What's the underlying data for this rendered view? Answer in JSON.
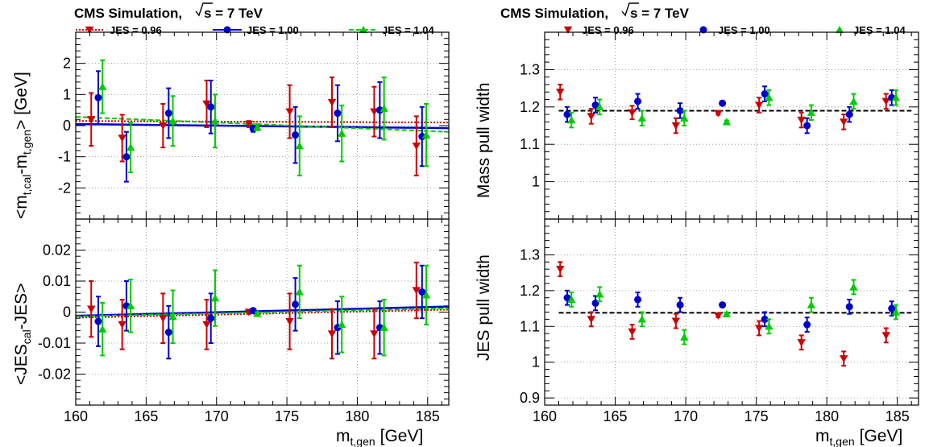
{
  "figure": {
    "title": "CMS Simulation,",
    "energy_label": "s = 7 TeV",
    "xlabel_main": "m",
    "xlabel_sub": "t,gen",
    "xlabel_unit": "[GeV]"
  },
  "colors": {
    "jes096": "#cc0000",
    "jes100": "#0000cc",
    "jes104": "#00cc00",
    "reference_line": "#000000"
  },
  "chart_data": [
    {
      "id": "top-left",
      "type": "scatter",
      "ylabel": "<m_t,cal - m_t,gen> [GeV]",
      "ylabel_parts": {
        "a": "<m",
        "a_sub": "t,cal",
        "b": "-m",
        "b_sub": "t,gen",
        "c": "> [GeV]"
      },
      "xlim": [
        160,
        186.5
      ],
      "ylim": [
        -3,
        3
      ],
      "xticks": [
        160,
        165,
        170,
        175,
        180,
        185
      ],
      "yticks": [
        -2,
        -1,
        0,
        1,
        2
      ],
      "xtick_labels": [],
      "grid": true,
      "legend": {
        "placement": "top",
        "entries": [
          {
            "series": "jes096",
            "label": "JES = 0.96",
            "line": "dotted",
            "marker": "triangle-down"
          },
          {
            "series": "jes100",
            "label": "JES = 1.00",
            "line": "solid",
            "marker": "circle"
          },
          {
            "series": "jes104",
            "label": "JES = 1.04",
            "line": "dashed",
            "marker": "triangle-up"
          }
        ]
      },
      "series": [
        {
          "key": "jes096",
          "name": "JES = 0.96",
          "marker": "triangle-down",
          "x": [
            161.1,
            163.3,
            166.2,
            169.3,
            172.3,
            175.2,
            178.2,
            181.2,
            184.2
          ],
          "y": [
            0.2,
            -0.4,
            0.0,
            0.7,
            0.05,
            0.45,
            0.75,
            0.45,
            -0.65
          ],
          "err": [
            0.85,
            0.75,
            0.7,
            0.75,
            0.1,
            0.85,
            0.8,
            0.8,
            0.95
          ]
        },
        {
          "key": "jes100",
          "name": "JES = 1.00",
          "marker": "circle",
          "x": [
            161.6,
            163.6,
            166.6,
            169.6,
            172.6,
            175.6,
            178.6,
            181.6,
            184.6
          ],
          "y": [
            0.9,
            -1.0,
            0.4,
            0.6,
            -0.1,
            -0.3,
            0.4,
            0.5,
            -0.35
          ],
          "err": [
            0.85,
            0.8,
            0.8,
            0.85,
            0.1,
            0.9,
            0.9,
            0.9,
            0.95
          ]
        },
        {
          "key": "jes104",
          "name": "JES = 1.04",
          "marker": "triangle-up",
          "x": [
            161.9,
            163.9,
            166.9,
            169.9,
            172.9,
            175.9,
            178.9,
            181.9,
            184.9
          ],
          "y": [
            1.25,
            -0.7,
            0.15,
            0.15,
            -0.05,
            -0.65,
            -0.25,
            0.55,
            -0.3
          ],
          "err": [
            0.85,
            0.8,
            0.8,
            0.85,
            0.1,
            0.95,
            0.9,
            1.0,
            1.0
          ]
        }
      ],
      "fit_lines": [
        {
          "key": "jes096",
          "style": "dotted",
          "x": [
            160,
            186.5
          ],
          "y": [
            0.15,
            0.1
          ]
        },
        {
          "key": "jes100",
          "style": "solid",
          "x": [
            160,
            186.5
          ],
          "y": [
            0.05,
            -0.08
          ]
        },
        {
          "key": "jes104",
          "style": "dashed",
          "x": [
            160,
            186.5
          ],
          "y": [
            0.28,
            -0.2
          ]
        }
      ]
    },
    {
      "id": "bottom-left",
      "type": "scatter",
      "ylabel": "<JES_cal - JES>",
      "ylabel_parts": {
        "a": "<JES",
        "a_sub": "cal",
        "b": "-JES>"
      },
      "xlim": [
        160,
        186.5
      ],
      "ylim": [
        -0.03,
        0.03
      ],
      "xticks": [
        160,
        165,
        170,
        175,
        180,
        185
      ],
      "yticks": [
        -0.02,
        -0.01,
        0,
        0.01,
        0.02
      ],
      "ytick_labels": [
        "-0.02",
        "-0.01",
        "0",
        "0.01",
        "0.02"
      ],
      "xtick_labels": [
        "160",
        "165",
        "170",
        "175",
        "180",
        "185"
      ],
      "grid": true,
      "series": [
        {
          "key": "jes096",
          "name": "JES = 0.96",
          "marker": "triangle-down",
          "x": [
            161.1,
            163.3,
            166.2,
            169.3,
            172.3,
            175.2,
            178.2,
            181.2,
            184.2
          ],
          "y": [
            0.001,
            -0.004,
            -0.002,
            -0.004,
            0.0,
            -0.003,
            -0.007,
            -0.007,
            0.007
          ],
          "err": [
            0.009,
            0.008,
            0.008,
            0.008,
            0.0005,
            0.009,
            0.008,
            0.008,
            0.009
          ]
        },
        {
          "key": "jes100",
          "name": "JES = 1.00",
          "marker": "circle",
          "x": [
            161.6,
            163.6,
            166.6,
            169.6,
            172.6,
            175.6,
            178.6,
            181.6,
            184.6
          ],
          "y": [
            -0.003,
            0.002,
            -0.0065,
            -0.002,
            0.0005,
            0.0025,
            -0.005,
            -0.005,
            0.0065
          ],
          "err": [
            0.008,
            0.008,
            0.0085,
            0.008,
            0.0005,
            0.0085,
            0.0085,
            0.0085,
            0.0085
          ]
        },
        {
          "key": "jes104",
          "name": "JES = 1.04",
          "marker": "triangle-up",
          "x": [
            161.9,
            163.9,
            166.9,
            169.9,
            172.9,
            175.9,
            178.9,
            181.9,
            184.9
          ],
          "y": [
            -0.0055,
            0.002,
            -0.0015,
            0.0045,
            -0.0005,
            0.0065,
            -0.004,
            -0.005,
            0.0055
          ],
          "err": [
            0.0085,
            0.0085,
            0.0085,
            0.009,
            0.0005,
            0.0085,
            0.009,
            0.009,
            0.0095
          ]
        }
      ],
      "fit_lines": [
        {
          "key": "jes096",
          "style": "dotted",
          "x": [
            160,
            186.5
          ],
          "y": [
            -0.0018,
            0.0008
          ]
        },
        {
          "key": "jes100",
          "style": "solid",
          "x": [
            160,
            186.5
          ],
          "y": [
            -0.0012,
            0.0018
          ]
        },
        {
          "key": "jes104",
          "style": "dashed",
          "x": [
            160,
            186.5
          ],
          "y": [
            -0.0014,
            0.0012
          ]
        }
      ]
    },
    {
      "id": "top-right",
      "type": "scatter",
      "ylabel": "Mass pull width",
      "xlim": [
        160,
        186.5
      ],
      "ylim": [
        0.9,
        1.4
      ],
      "xticks": [
        160,
        165,
        170,
        175,
        180,
        185
      ],
      "yticks": [
        1.0,
        1.1,
        1.2,
        1.3
      ],
      "ytick_labels": [
        "1",
        "1.1",
        "1.2",
        "1.3"
      ],
      "xtick_labels": [],
      "grid": true,
      "legend": {
        "placement": "top",
        "entries": [
          {
            "series": "jes096",
            "label": "JES = 0.96",
            "line": "none",
            "marker": "triangle-down"
          },
          {
            "series": "jes100",
            "label": "JES = 1.00",
            "line": "none",
            "marker": "circle"
          },
          {
            "series": "jes104",
            "label": "JES = 1.04",
            "line": "none",
            "marker": "triangle-up"
          }
        ]
      },
      "series": [
        {
          "key": "jes096",
          "name": "JES = 0.96",
          "marker": "triangle-down",
          "x": [
            161.1,
            163.3,
            166.2,
            169.3,
            172.3,
            175.2,
            178.2,
            181.2,
            184.2
          ],
          "y": [
            1.24,
            1.175,
            1.185,
            1.15,
            1.183,
            1.205,
            1.165,
            1.16,
            1.215
          ],
          "err": [
            0.02,
            0.02,
            0.018,
            0.02,
            0.004,
            0.02,
            0.02,
            0.02,
            0.02
          ]
        },
        {
          "key": "jes100",
          "name": "JES = 1.00",
          "marker": "circle",
          "x": [
            161.6,
            163.6,
            166.6,
            169.6,
            172.6,
            175.6,
            178.6,
            181.6,
            184.6
          ],
          "y": [
            1.18,
            1.205,
            1.215,
            1.19,
            1.21,
            1.235,
            1.15,
            1.18,
            1.225
          ],
          "err": [
            0.02,
            0.02,
            0.02,
            0.02,
            0.004,
            0.02,
            0.02,
            0.02,
            0.02
          ]
        },
        {
          "key": "jes104",
          "name": "JES = 1.04",
          "marker": "triangle-up",
          "x": [
            161.9,
            163.9,
            166.9,
            169.9,
            172.9,
            175.9,
            178.9,
            181.9,
            184.9
          ],
          "y": [
            1.165,
            1.2,
            1.17,
            1.17,
            1.16,
            1.225,
            1.185,
            1.215,
            1.225
          ],
          "err": [
            0.02,
            0.02,
            0.02,
            0.02,
            0.004,
            0.02,
            0.02,
            0.02,
            0.02
          ]
        }
      ],
      "reference_line": {
        "style": "dashed",
        "x": [
          161,
          186
        ],
        "y": 1.19
      }
    },
    {
      "id": "bottom-right",
      "type": "scatter",
      "ylabel": "JES pull width",
      "xlim": [
        160,
        186.5
      ],
      "ylim": [
        0.88,
        1.4
      ],
      "xticks": [
        160,
        165,
        170,
        175,
        180,
        185
      ],
      "yticks": [
        0.9,
        1.0,
        1.1,
        1.2,
        1.3
      ],
      "ytick_labels": [
        "0.9",
        "1",
        "1.1",
        "1.2",
        "1.3"
      ],
      "xtick_labels": [
        "160",
        "165",
        "170",
        "175",
        "180",
        "185"
      ],
      "grid": true,
      "series": [
        {
          "key": "jes096",
          "name": "JES = 0.96",
          "marker": "triangle-down",
          "x": [
            161.1,
            163.3,
            166.2,
            169.3,
            172.3,
            175.2,
            178.2,
            181.2,
            184.2
          ],
          "y": [
            1.26,
            1.12,
            1.085,
            1.115,
            1.13,
            1.095,
            1.055,
            1.01,
            1.075
          ],
          "err": [
            0.02,
            0.02,
            0.02,
            0.02,
            0.004,
            0.02,
            0.02,
            0.02,
            0.02
          ]
        },
        {
          "key": "jes100",
          "name": "JES = 1.00",
          "marker": "circle",
          "x": [
            161.6,
            163.6,
            166.6,
            169.6,
            172.6,
            175.6,
            178.6,
            181.6,
            184.6
          ],
          "y": [
            1.18,
            1.165,
            1.175,
            1.16,
            1.16,
            1.12,
            1.105,
            1.155,
            1.15
          ],
          "err": [
            0.02,
            0.02,
            0.02,
            0.02,
            0.004,
            0.02,
            0.02,
            0.02,
            0.02
          ]
        },
        {
          "key": "jes104",
          "name": "JES = 1.04",
          "marker": "triangle-up",
          "x": [
            161.9,
            163.9,
            166.9,
            169.9,
            172.9,
            175.9,
            178.9,
            181.9,
            184.9
          ],
          "y": [
            1.175,
            1.19,
            1.12,
            1.07,
            1.135,
            1.1,
            1.16,
            1.21,
            1.14
          ],
          "err": [
            0.02,
            0.02,
            0.02,
            0.02,
            0.004,
            0.02,
            0.02,
            0.02,
            0.02
          ]
        }
      ],
      "reference_line": {
        "style": "dashed",
        "x": [
          161,
          186
        ],
        "y": 1.138
      }
    }
  ]
}
